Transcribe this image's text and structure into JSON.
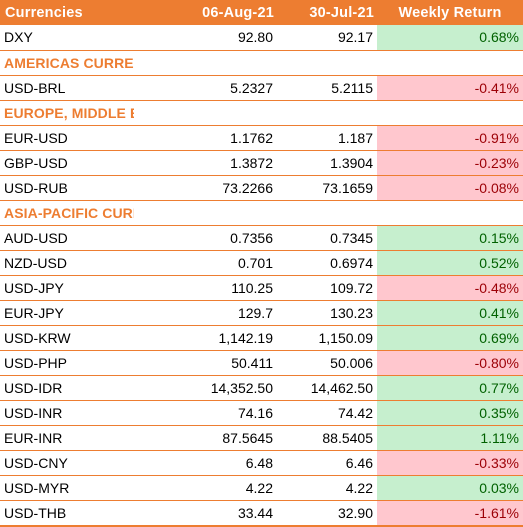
{
  "header": {
    "col_name": "Currencies",
    "col_date1": "06-Aug-21",
    "col_date2": "30-Jul-21",
    "col_return": "Weekly Return"
  },
  "colors": {
    "header_bg": "#ed7d31",
    "positive_bg": "#c6efce",
    "positive_text": "#006100",
    "negative_bg": "#ffc7ce",
    "negative_text": "#9c0006"
  },
  "rows": [
    {
      "name": "DXY",
      "d1": "92.80",
      "d2": "92.17",
      "ret": "0.68%",
      "sign": "pos"
    },
    {
      "section": "AMERICAS CURRENCIES"
    },
    {
      "name": "USD-BRL",
      "d1": "5.2327",
      "d2": "5.2115",
      "ret": "-0.41%",
      "sign": "neg"
    },
    {
      "section": "EUROPE, MIDDLE EAST & AFRICA CURRENCIES"
    },
    {
      "name": "EUR-USD",
      "d1": "1.1762",
      "d2": "1.187",
      "ret": "-0.91%",
      "sign": "neg"
    },
    {
      "name": "GBP-USD",
      "d1": "1.3872",
      "d2": "1.3904",
      "ret": "-0.23%",
      "sign": "neg"
    },
    {
      "name": "USD-RUB",
      "d1": "73.2266",
      "d2": "73.1659",
      "ret": "-0.08%",
      "sign": "neg"
    },
    {
      "section": "ASIA-PACIFIC CURRENCIES"
    },
    {
      "name": "AUD-USD",
      "d1": "0.7356",
      "d2": "0.7345",
      "ret": "0.15%",
      "sign": "pos"
    },
    {
      "name": "NZD-USD",
      "d1": "0.701",
      "d2": "0.6974",
      "ret": "0.52%",
      "sign": "pos"
    },
    {
      "name": "USD-JPY",
      "d1": "110.25",
      "d2": "109.72",
      "ret": "-0.48%",
      "sign": "neg"
    },
    {
      "name": "EUR-JPY",
      "d1": "129.7",
      "d2": "130.23",
      "ret": "0.41%",
      "sign": "pos"
    },
    {
      "name": "USD-KRW",
      "d1": "1,142.19",
      "d2": "1,150.09",
      "ret": "0.69%",
      "sign": "pos"
    },
    {
      "name": "USD-PHP",
      "d1": "50.411",
      "d2": "50.006",
      "ret": "-0.80%",
      "sign": "neg"
    },
    {
      "name": "USD-IDR",
      "d1": "14,352.50",
      "d2": "14,462.50",
      "ret": "0.77%",
      "sign": "pos"
    },
    {
      "name": "USD-INR",
      "d1": "74.16",
      "d2": "74.42",
      "ret": "0.35%",
      "sign": "pos"
    },
    {
      "name": "EUR-INR",
      "d1": "87.5645",
      "d2": "88.5405",
      "ret": "1.11%",
      "sign": "pos"
    },
    {
      "name": "USD-CNY",
      "d1": "6.48",
      "d2": "6.46",
      "ret": "-0.33%",
      "sign": "neg"
    },
    {
      "name": "USD-MYR",
      "d1": "4.22",
      "d2": "4.22",
      "ret": "0.03%",
      "sign": "pos"
    },
    {
      "name": "USD-THB",
      "d1": "33.44",
      "d2": "32.90",
      "ret": "-1.61%",
      "sign": "neg"
    }
  ]
}
